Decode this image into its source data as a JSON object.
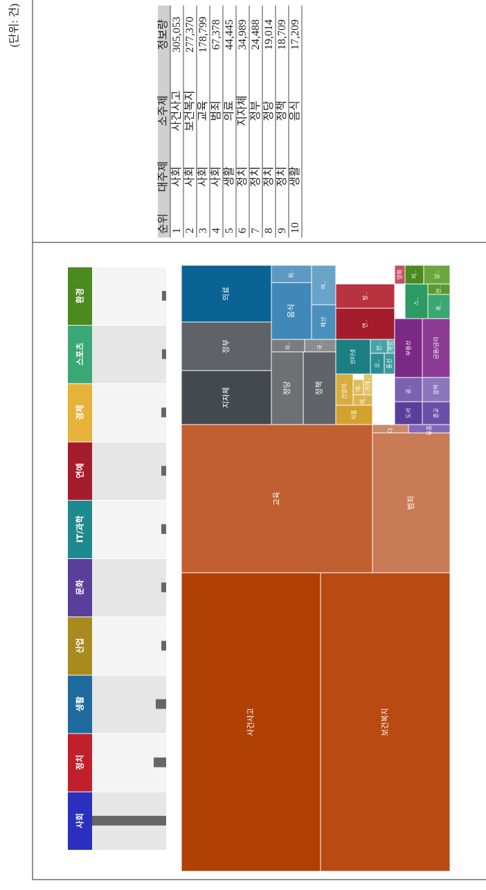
{
  "unit_note": "(단위: 건)",
  "category_tabs": [
    {
      "label": "사회",
      "color": "#2b2fc0"
    },
    {
      "label": "정치",
      "color": "#c0202c"
    },
    {
      "label": "생활",
      "color": "#1e6a9e"
    },
    {
      "label": "산업",
      "color": "#a88a1e"
    },
    {
      "label": "문화",
      "color": "#5a3f9a"
    },
    {
      "label": "IT/과학",
      "color": "#1f8a8e"
    },
    {
      "label": "연예",
      "color": "#a51c2c"
    },
    {
      "label": "경제",
      "color": "#e6b23a"
    },
    {
      "label": "스포츠",
      "color": "#3aa876"
    },
    {
      "label": "환경",
      "color": "#4a8a1e"
    }
  ],
  "category_bars": [
    107,
    18,
    15,
    7,
    7,
    7,
    7,
    7,
    6,
    6
  ],
  "treemap": {
    "nodes": [
      {
        "label": "사건사고",
        "color": "#b04006"
      },
      {
        "label": "보건복지",
        "color": "#b84a12"
      },
      {
        "label": "교육",
        "color": "#c15f30"
      },
      {
        "label": "범죄",
        "color": "#c97b55"
      },
      {
        "label": "다..",
        "color": "#c88a68"
      },
      {
        "label": "지자체",
        "color": "#44494e"
      },
      {
        "label": "정부",
        "color": "#5f6266"
      },
      {
        "label": "의료",
        "color": "#0a6394"
      },
      {
        "label": "정당",
        "color": "#6e7074"
      },
      {
        "label": "정책",
        "color": "#606367"
      },
      {
        "label": "외..",
        "color": "#7a7c80"
      },
      {
        "label": "국..",
        "color": "#8a8c90"
      },
      {
        "label": "음식",
        "color": "#3f88b8"
      },
      {
        "label": "패션",
        "color": "#4a90bd"
      },
      {
        "label": "취..",
        "color": "#5d9ac2"
      },
      {
        "label": "여..",
        "color": "#6aa3c8"
      },
      {
        "label": "식품",
        "color": "#d3a12e"
      },
      {
        "label": "건설자..",
        "color": "#d8ac3e"
      },
      {
        "label": "레..",
        "color": "#dcb44e"
      },
      {
        "label": "에..",
        "color": "#e0bb5c"
      },
      {
        "label": "기계..",
        "color": "#e3c36c"
      },
      {
        "label": "유흥..",
        "color": "#8468b8"
      },
      {
        "label": "도서",
        "color": "#5a3f9a"
      },
      {
        "label": "종교",
        "color": "#6a4fa8"
      },
      {
        "label": "공..",
        "color": "#7a62b0"
      },
      {
        "label": "음악",
        "color": "#8b76bc"
      },
      {
        "label": "인터넷",
        "color": "#1b7f84"
      },
      {
        "label": "모..",
        "color": "#2b8d92"
      },
      {
        "label": "통신",
        "color": "#3a9a9f"
      },
      {
        "label": "반..",
        "color": "#48a3a8"
      },
      {
        "label": "게임",
        "color": "#56adb1"
      },
      {
        "label": "부동산",
        "color": "#7a2a84"
      },
      {
        "label": "금융/금리",
        "color": "#8c3a94"
      },
      {
        "label": "연..",
        "color": "#a51c2c"
      },
      {
        "label": "방..",
        "color": "#b8323f"
      },
      {
        "label": "영화",
        "color": "#c45060"
      },
      {
        "label": "스..",
        "color": "#2e9a64"
      },
      {
        "label": "축..",
        "color": "#3aa870"
      },
      {
        "label": "지..",
        "color": "#4a8a1e"
      },
      {
        "label": "전..",
        "color": "#5a9a2e"
      },
      {
        "label": "날..",
        "color": "#6aa83e"
      }
    ]
  },
  "table": {
    "header": [
      "순위",
      "대주제",
      "소주제",
      "정보량"
    ],
    "rows": [
      [
        "1",
        "사회",
        "사건사고",
        "305,053"
      ],
      [
        "2",
        "사회",
        "보건복지",
        "277,370"
      ],
      [
        "3",
        "사회",
        "교육",
        "178,799"
      ],
      [
        "4",
        "사회",
        "범죄",
        "67,378"
      ],
      [
        "5",
        "생활",
        "의료",
        "44,445"
      ],
      [
        "6",
        "정치",
        "지자체",
        "34,989"
      ],
      [
        "7",
        "정치",
        "정부",
        "24,488"
      ],
      [
        "8",
        "정치",
        "정당",
        "19,014"
      ],
      [
        "9",
        "정치",
        "정책",
        "18,709"
      ],
      [
        "10",
        "생활",
        "음식",
        "17,209"
      ]
    ]
  }
}
